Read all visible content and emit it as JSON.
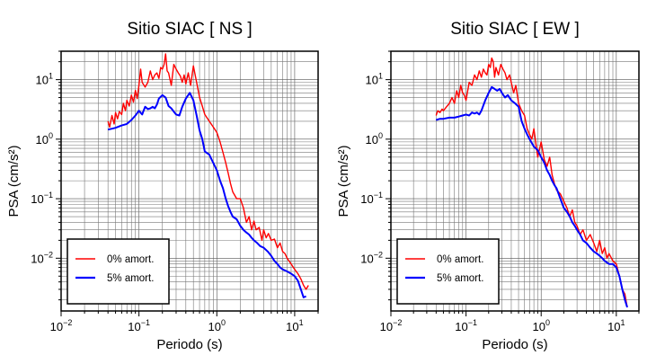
{
  "chart_data": [
    {
      "type": "line",
      "title": "Sitio SIAC [ NS ]",
      "xlabel": "Periodo (s)",
      "ylabel": "PSA (cm/s²)",
      "xscale": "log",
      "yscale": "log",
      "xlim": [
        0.01,
        20
      ],
      "ylim": [
        0.0013,
        30
      ],
      "grid": true,
      "legend_position": "bottom-left",
      "x_ticks": [
        {
          "value": 0.01,
          "label": "10",
          "exp": "−2"
        },
        {
          "value": 0.1,
          "label": "10",
          "exp": "−1"
        },
        {
          "value": 1,
          "label": "10",
          "exp": "0"
        },
        {
          "value": 10,
          "label": "10",
          "exp": "1"
        }
      ],
      "y_ticks": [
        {
          "value": 0.01,
          "label": "10",
          "exp": "−2"
        },
        {
          "value": 0.1,
          "label": "10",
          "exp": "−1"
        },
        {
          "value": 1,
          "label": "10",
          "exp": "0"
        },
        {
          "value": 10,
          "label": "10",
          "exp": "1"
        }
      ],
      "series": [
        {
          "name": "0% amort.",
          "color": "#ff0000",
          "x": [
            0.04,
            0.042,
            0.045,
            0.048,
            0.05,
            0.053,
            0.056,
            0.06,
            0.063,
            0.067,
            0.07,
            0.075,
            0.08,
            0.085,
            0.09,
            0.095,
            0.1,
            0.105,
            0.11,
            0.12,
            0.13,
            0.14,
            0.15,
            0.16,
            0.17,
            0.18,
            0.19,
            0.2,
            0.21,
            0.22,
            0.23,
            0.24,
            0.26,
            0.28,
            0.3,
            0.32,
            0.34,
            0.36,
            0.38,
            0.4,
            0.43,
            0.46,
            0.5,
            0.55,
            0.6,
            0.65,
            0.7,
            0.8,
            0.9,
            1.0,
            1.1,
            1.2,
            1.3,
            1.4,
            1.5,
            1.6,
            1.8,
            2.0,
            2.2,
            2.4,
            2.6,
            2.8,
            3.0,
            3.2,
            3.5,
            3.8,
            4.0,
            4.3,
            4.6,
            5.0,
            5.5,
            6.0,
            6.5,
            7.0,
            7.5,
            8.0,
            9.0,
            10.0,
            11.0,
            12.0,
            13.0,
            14.0,
            15.0
          ],
          "y": [
            2.0,
            1.6,
            2.5,
            1.8,
            2.8,
            2.2,
            2.9,
            2.6,
            4.0,
            3.0,
            4.5,
            3.6,
            5.5,
            4.2,
            6.6,
            4.8,
            8.0,
            15.0,
            9.0,
            7.5,
            9.0,
            14.0,
            10.0,
            12.0,
            13.0,
            10.5,
            16.0,
            15.0,
            18.0,
            27.0,
            14.0,
            13.0,
            8.0,
            18.0,
            15.0,
            13.0,
            11.5,
            9.0,
            12.0,
            8.5,
            13.0,
            8.0,
            17.0,
            9.0,
            5.0,
            3.6,
            2.6,
            2.0,
            1.6,
            1.3,
            0.9,
            0.6,
            0.4,
            0.27,
            0.18,
            0.13,
            0.1,
            0.1,
            0.07,
            0.04,
            0.05,
            0.03,
            0.042,
            0.03,
            0.033,
            0.02,
            0.03,
            0.022,
            0.026,
            0.02,
            0.021,
            0.015,
            0.018,
            0.013,
            0.012,
            0.01,
            0.008,
            0.0065,
            0.0055,
            0.0045,
            0.0035,
            0.003,
            0.0035
          ]
        },
        {
          "name": "5% amort.",
          "color": "#0000ff",
          "x": [
            0.04,
            0.045,
            0.05,
            0.06,
            0.07,
            0.08,
            0.09,
            0.1,
            0.11,
            0.12,
            0.13,
            0.14,
            0.15,
            0.16,
            0.17,
            0.18,
            0.2,
            0.22,
            0.24,
            0.26,
            0.28,
            0.3,
            0.33,
            0.36,
            0.4,
            0.45,
            0.5,
            0.55,
            0.6,
            0.65,
            0.7,
            0.8,
            0.9,
            1.0,
            1.1,
            1.2,
            1.3,
            1.4,
            1.5,
            1.6,
            1.8,
            2.0,
            2.2,
            2.4,
            2.6,
            2.8,
            3.0,
            3.3,
            3.6,
            4.0,
            4.5,
            5.0,
            5.5,
            6.0,
            6.5,
            7.0,
            8.0,
            9.0,
            10.0,
            11.0,
            12.0,
            13.0,
            14.0
          ],
          "y": [
            1.45,
            1.5,
            1.55,
            1.7,
            1.8,
            2.1,
            2.5,
            3.0,
            2.6,
            3.5,
            3.2,
            3.3,
            3.5,
            3.3,
            3.8,
            4.8,
            5.5,
            5.0,
            3.6,
            3.3,
            2.9,
            2.6,
            2.5,
            3.5,
            4.8,
            6.0,
            4.5,
            2.5,
            1.4,
            1.0,
            0.62,
            0.55,
            0.4,
            0.3,
            0.2,
            0.15,
            0.1,
            0.075,
            0.06,
            0.05,
            0.045,
            0.035,
            0.03,
            0.027,
            0.025,
            0.022,
            0.02,
            0.018,
            0.016,
            0.015,
            0.013,
            0.011,
            0.009,
            0.008,
            0.007,
            0.0065,
            0.006,
            0.0055,
            0.005,
            0.0042,
            0.003,
            0.0022,
            0.0023
          ]
        }
      ]
    },
    {
      "type": "line",
      "title": "Sitio SIAC [ EW ]",
      "xlabel": "Periodo (s)",
      "ylabel": "PSA (cm/s²)",
      "xscale": "log",
      "yscale": "log",
      "xlim": [
        0.01,
        20
      ],
      "ylim": [
        0.0013,
        30
      ],
      "grid": true,
      "legend_position": "bottom-left",
      "x_ticks": [
        {
          "value": 0.01,
          "label": "10",
          "exp": "−2"
        },
        {
          "value": 0.1,
          "label": "10",
          "exp": "−1"
        },
        {
          "value": 1,
          "label": "10",
          "exp": "0"
        },
        {
          "value": 10,
          "label": "10",
          "exp": "1"
        }
      ],
      "y_ticks": [
        {
          "value": 0.01,
          "label": "10",
          "exp": "−2"
        },
        {
          "value": 0.1,
          "label": "10",
          "exp": "−1"
        },
        {
          "value": 1,
          "label": "10",
          "exp": "0"
        },
        {
          "value": 10,
          "label": "10",
          "exp": "1"
        }
      ],
      "series": [
        {
          "name": "0% amort.",
          "color": "#ff0000",
          "x": [
            0.04,
            0.042,
            0.045,
            0.048,
            0.05,
            0.055,
            0.06,
            0.065,
            0.07,
            0.075,
            0.08,
            0.085,
            0.09,
            0.095,
            0.1,
            0.11,
            0.12,
            0.13,
            0.14,
            0.15,
            0.16,
            0.17,
            0.18,
            0.19,
            0.2,
            0.21,
            0.22,
            0.23,
            0.24,
            0.25,
            0.27,
            0.29,
            0.31,
            0.33,
            0.35,
            0.38,
            0.4,
            0.43,
            0.46,
            0.5,
            0.55,
            0.6,
            0.65,
            0.7,
            0.75,
            0.8,
            0.9,
            1.0,
            1.1,
            1.2,
            1.3,
            1.4,
            1.5,
            1.6,
            1.8,
            2.0,
            2.2,
            2.4,
            2.6,
            2.8,
            3.0,
            3.3,
            3.6,
            4.0,
            4.5,
            5.0,
            5.5,
            6.0,
            6.5,
            7.0,
            7.5,
            8.0,
            9.0,
            10.0,
            11.0,
            12.0,
            13.0,
            14.0
          ],
          "y": [
            2.5,
            3.0,
            2.8,
            3.2,
            3.0,
            3.5,
            4.0,
            5.0,
            4.0,
            6.5,
            5.0,
            8.0,
            6.0,
            5.5,
            4.5,
            9.0,
            8.0,
            12.0,
            10.0,
            14.0,
            11.0,
            15.0,
            13.0,
            12.0,
            18.0,
            16.0,
            23.0,
            20.0,
            11.0,
            16.0,
            12.0,
            18.0,
            15.0,
            13.0,
            10.0,
            12.0,
            9.0,
            6.0,
            8.0,
            4.0,
            3.0,
            2.5,
            1.5,
            1.2,
            1.0,
            1.5,
            0.5,
            0.9,
            0.45,
            0.35,
            0.5,
            0.25,
            0.18,
            0.14,
            0.12,
            0.09,
            0.07,
            0.05,
            0.065,
            0.04,
            0.035,
            0.025,
            0.03,
            0.02,
            0.025,
            0.018,
            0.013,
            0.02,
            0.012,
            0.015,
            0.01,
            0.012,
            0.009,
            0.008,
            0.005,
            0.003,
            0.0025,
            0.0015
          ]
        },
        {
          "name": "5% amort.",
          "color": "#0000ff",
          "x": [
            0.04,
            0.045,
            0.05,
            0.06,
            0.07,
            0.08,
            0.09,
            0.1,
            0.11,
            0.12,
            0.13,
            0.14,
            0.15,
            0.16,
            0.18,
            0.2,
            0.22,
            0.24,
            0.26,
            0.28,
            0.3,
            0.33,
            0.36,
            0.4,
            0.45,
            0.5,
            0.55,
            0.6,
            0.65,
            0.7,
            0.8,
            0.9,
            1.0,
            1.1,
            1.2,
            1.3,
            1.4,
            1.5,
            1.6,
            1.8,
            2.0,
            2.2,
            2.4,
            2.6,
            2.8,
            3.0,
            3.3,
            3.6,
            4.0,
            4.5,
            5.0,
            5.5,
            6.0,
            6.5,
            7.0,
            8.0,
            9.0,
            10.0,
            11.0,
            12.0,
            13.0,
            14.0
          ],
          "y": [
            2.1,
            2.2,
            2.2,
            2.3,
            2.3,
            2.4,
            2.5,
            2.6,
            2.5,
            2.8,
            2.7,
            2.8,
            2.6,
            3.0,
            4.5,
            6.0,
            7.5,
            7.0,
            6.5,
            7.0,
            6.0,
            5.0,
            5.5,
            4.5,
            4.0,
            3.5,
            2.0,
            1.5,
            1.2,
            1.0,
            0.75,
            0.65,
            0.5,
            0.4,
            0.3,
            0.25,
            0.2,
            0.17,
            0.15,
            0.1,
            0.07,
            0.06,
            0.05,
            0.04,
            0.035,
            0.03,
            0.025,
            0.02,
            0.018,
            0.015,
            0.013,
            0.012,
            0.011,
            0.01,
            0.009,
            0.008,
            0.008,
            0.007,
            0.005,
            0.003,
            0.002,
            0.0015
          ]
        }
      ]
    }
  ]
}
